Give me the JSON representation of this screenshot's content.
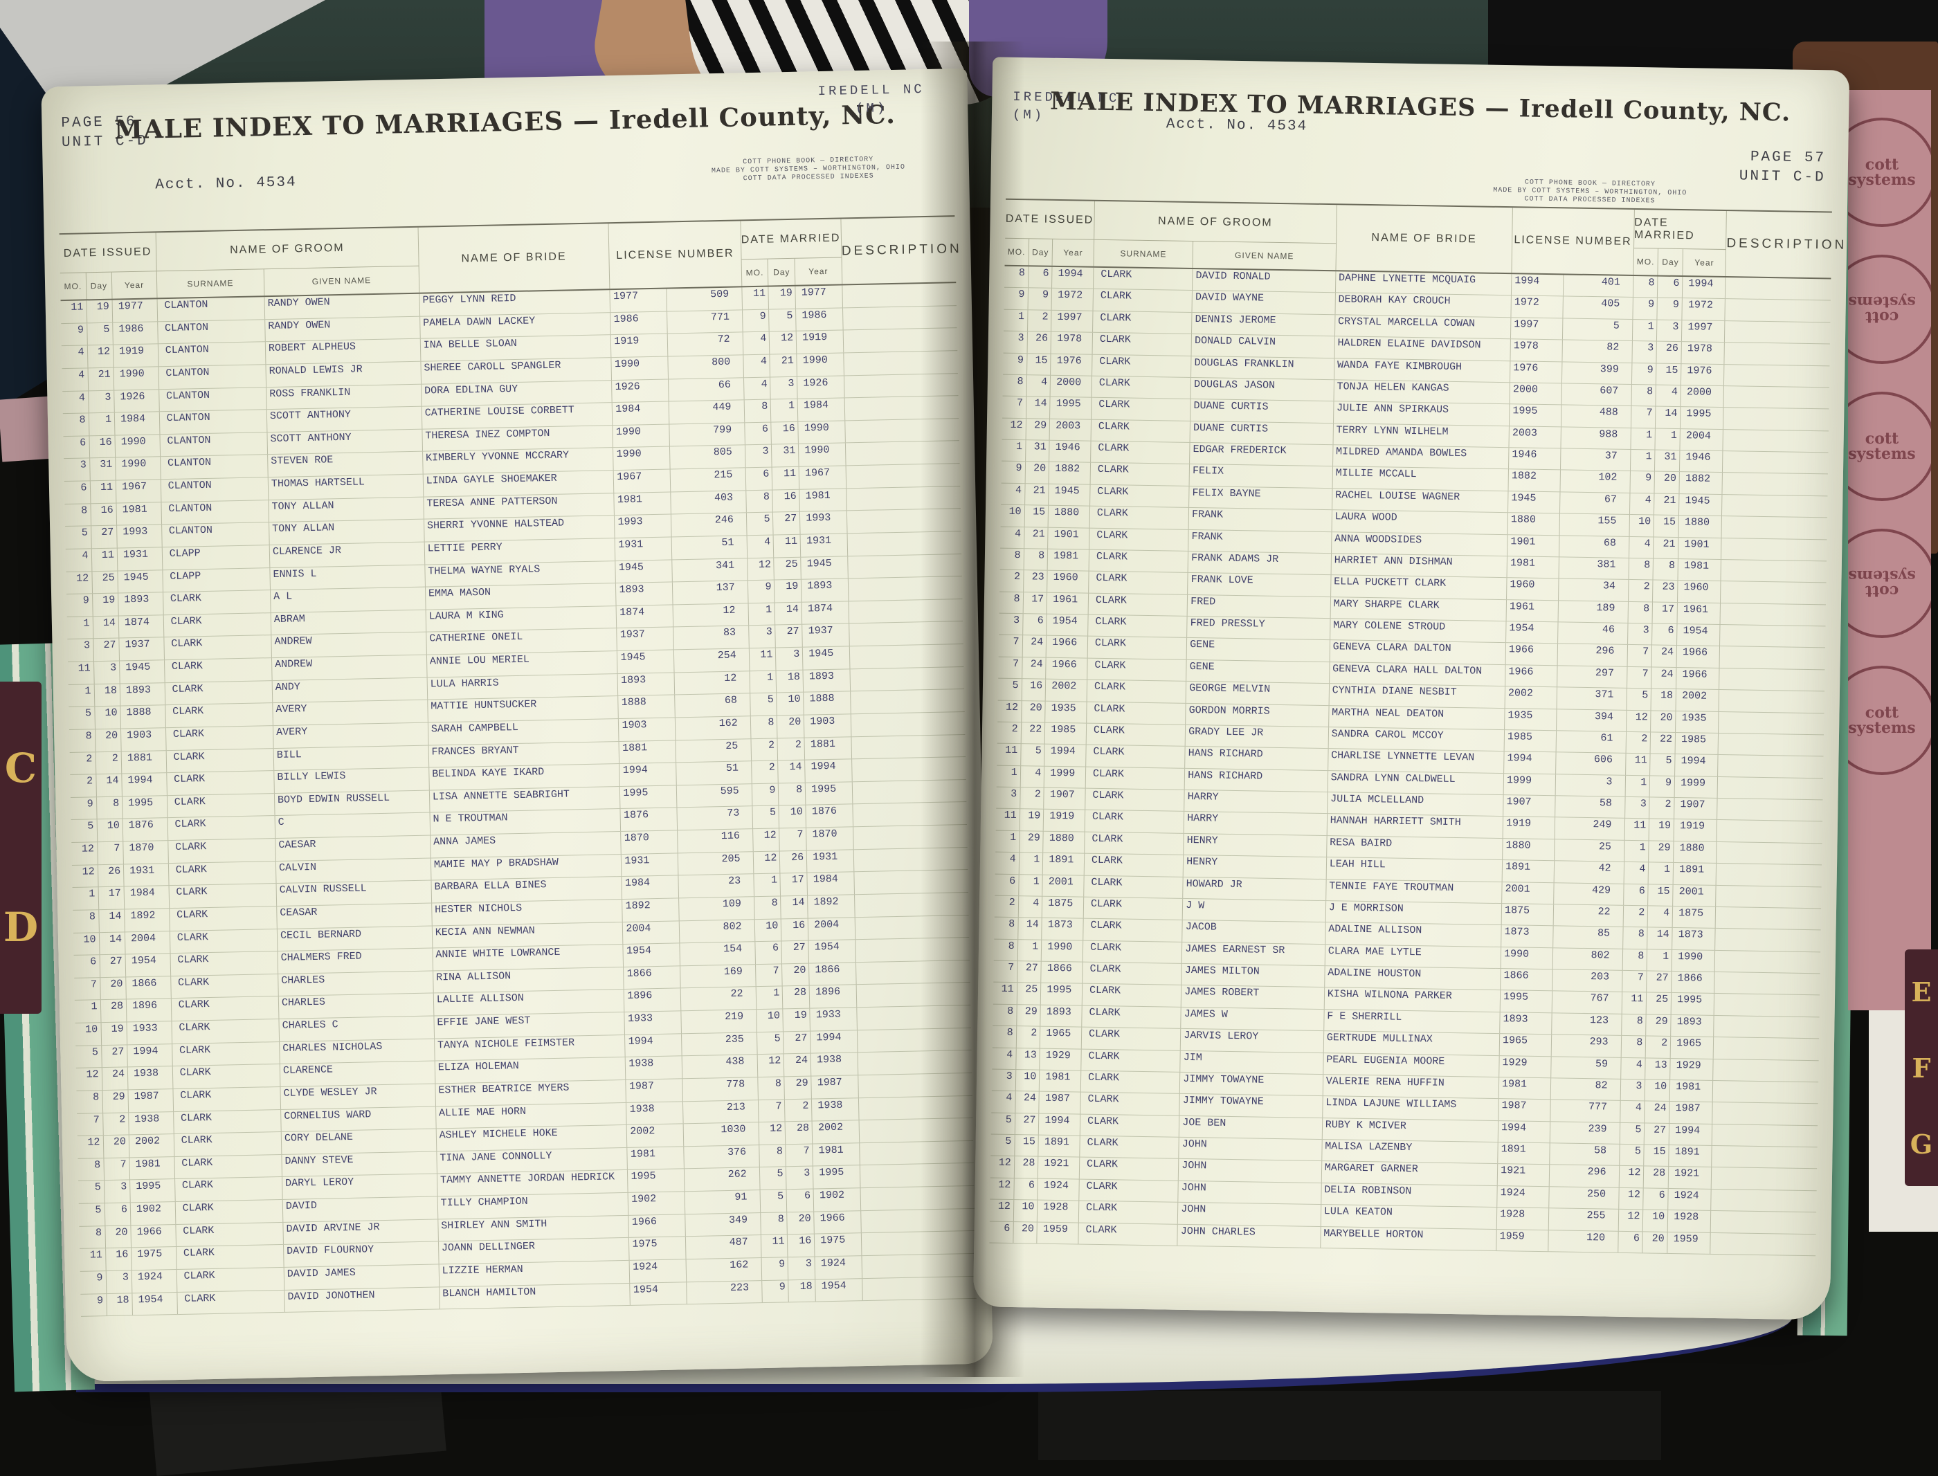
{
  "scene": {
    "left_tab_letters": [
      "C",
      "D"
    ],
    "right_tab_letters": [
      "E",
      "F",
      "G"
    ],
    "stamp_text": "cott systems",
    "accent_colors": {
      "page_edge_green": "#67ab8c",
      "tab_maroon": "#46232b",
      "tab_gold": "#d8b25a",
      "ink_blue": "#41416b",
      "stamp_pink": "#bd8b90"
    }
  },
  "headers": {
    "date_issued": "DATE ISSUED",
    "mo": "MO.",
    "day": "Day",
    "year": "Year",
    "groom": "NAME OF GROOM",
    "surname": "SURNAME",
    "given": "GIVEN NAME",
    "bride": "NAME OF BRIDE",
    "license": "LICENSE NUMBER",
    "married": "DATE MARRIED",
    "description": "DESCRIPTION"
  },
  "left_page": {
    "page_label": "PAGE 56",
    "unit_label": "UNIT C-D",
    "acct_label": "Acct. No. 4534",
    "corner_line1": "IREDELL NC",
    "corner_line2": "(M)",
    "title": "MALE INDEX TO MARRIAGES — Iredell County, NC.",
    "imprint_line1": "COTT PHONE BOOK — DIRECTORY",
    "imprint_line2": "MADE BY COTT SYSTEMS – WORTHINGTON, OHIO",
    "imprint_line3": "COTT DATA PROCESSED INDEXES",
    "rows": [
      [
        "11",
        "19",
        "1977",
        "CLANTON",
        "RANDY OWEN",
        "PEGGY LYNN REID",
        "1977",
        "509",
        "11",
        "19",
        "1977"
      ],
      [
        "9",
        "5",
        "1986",
        "CLANTON",
        "RANDY OWEN",
        "PAMELA DAWN LACKEY",
        "1986",
        "771",
        "9",
        "5",
        "1986"
      ],
      [
        "4",
        "12",
        "1919",
        "CLANTON",
        "ROBERT ALPHEUS",
        "INA BELLE SLOAN",
        "1919",
        "72",
        "4",
        "12",
        "1919"
      ],
      [
        "4",
        "21",
        "1990",
        "CLANTON",
        "RONALD LEWIS JR",
        "SHEREE CAROLL SPANGLER",
        "1990",
        "800",
        "4",
        "21",
        "1990"
      ],
      [
        "4",
        "3",
        "1926",
        "CLANTON",
        "ROSS FRANKLIN",
        "DORA EDLINA GUY",
        "1926",
        "66",
        "4",
        "3",
        "1926"
      ],
      [
        "8",
        "1",
        "1984",
        "CLANTON",
        "SCOTT ANTHONY",
        "CATHERINE LOUISE CORBETT",
        "1984",
        "449",
        "8",
        "1",
        "1984"
      ],
      [
        "6",
        "16",
        "1990",
        "CLANTON",
        "SCOTT ANTHONY",
        "THERESA INEZ COMPTON",
        "1990",
        "799",
        "6",
        "16",
        "1990"
      ],
      [
        "3",
        "31",
        "1990",
        "CLANTON",
        "STEVEN ROE",
        "KIMBERLY YVONNE MCCRARY",
        "1990",
        "805",
        "3",
        "31",
        "1990"
      ],
      [
        "6",
        "11",
        "1967",
        "CLANTON",
        "THOMAS HARTSELL",
        "LINDA GAYLE SHOEMAKER",
        "1967",
        "215",
        "6",
        "11",
        "1967"
      ],
      [
        "8",
        "16",
        "1981",
        "CLANTON",
        "TONY ALLAN",
        "TERESA ANNE PATTERSON",
        "1981",
        "403",
        "8",
        "16",
        "1981"
      ],
      [
        "5",
        "27",
        "1993",
        "CLANTON",
        "TONY ALLAN",
        "SHERRI YVONNE HALSTEAD",
        "1993",
        "246",
        "5",
        "27",
        "1993"
      ],
      [
        "4",
        "11",
        "1931",
        "CLAPP",
        "CLARENCE JR",
        "LETTIE PERRY",
        "1931",
        "51",
        "4",
        "11",
        "1931"
      ],
      [
        "12",
        "25",
        "1945",
        "CLAPP",
        "ENNIS L",
        "THELMA WAYNE RYALS",
        "1945",
        "341",
        "12",
        "25",
        "1945"
      ],
      [
        "9",
        "19",
        "1893",
        "CLARK",
        "A L",
        "EMMA MASON",
        "1893",
        "137",
        "9",
        "19",
        "1893"
      ],
      [
        "1",
        "14",
        "1874",
        "CLARK",
        "ABRAM",
        "LAURA M KING",
        "1874",
        "12",
        "1",
        "14",
        "1874"
      ],
      [
        "3",
        "27",
        "1937",
        "CLARK",
        "ANDREW",
        "CATHERINE ONEIL",
        "1937",
        "83",
        "3",
        "27",
        "1937"
      ],
      [
        "11",
        "3",
        "1945",
        "CLARK",
        "ANDREW",
        "ANNIE LOU MERIEL",
        "1945",
        "254",
        "11",
        "3",
        "1945"
      ],
      [
        "1",
        "18",
        "1893",
        "CLARK",
        "ANDY",
        "LULA HARRIS",
        "1893",
        "12",
        "1",
        "18",
        "1893"
      ],
      [
        "5",
        "10",
        "1888",
        "CLARK",
        "AVERY",
        "MATTIE HUNTSUCKER",
        "1888",
        "68",
        "5",
        "10",
        "1888"
      ],
      [
        "8",
        "20",
        "1903",
        "CLARK",
        "AVERY",
        "SARAH CAMPBELL",
        "1903",
        "162",
        "8",
        "20",
        "1903"
      ],
      [
        "2",
        "2",
        "1881",
        "CLARK",
        "BILL",
        "FRANCES BRYANT",
        "1881",
        "25",
        "2",
        "2",
        "1881"
      ],
      [
        "2",
        "14",
        "1994",
        "CLARK",
        "BILLY LEWIS",
        "BELINDA KAYE IKARD",
        "1994",
        "51",
        "2",
        "14",
        "1994"
      ],
      [
        "9",
        "8",
        "1995",
        "CLARK",
        "BOYD EDWIN RUSSELL",
        "LISA ANNETTE SEABRIGHT",
        "1995",
        "595",
        "9",
        "8",
        "1995"
      ],
      [
        "5",
        "10",
        "1876",
        "CLARK",
        "C",
        "N E TROUTMAN",
        "1876",
        "73",
        "5",
        "10",
        "1876"
      ],
      [
        "12",
        "7",
        "1870",
        "CLARK",
        "CAESAR",
        "ANNA JAMES",
        "1870",
        "116",
        "12",
        "7",
        "1870"
      ],
      [
        "12",
        "26",
        "1931",
        "CLARK",
        "CALVIN",
        "MAMIE MAY P BRADSHAW",
        "1931",
        "205",
        "12",
        "26",
        "1931"
      ],
      [
        "1",
        "17",
        "1984",
        "CLARK",
        "CALVIN RUSSELL",
        "BARBARA ELLA BINES",
        "1984",
        "23",
        "1",
        "17",
        "1984"
      ],
      [
        "8",
        "14",
        "1892",
        "CLARK",
        "CEASAR",
        "HESTER NICHOLS",
        "1892",
        "109",
        "8",
        "14",
        "1892"
      ],
      [
        "10",
        "14",
        "2004",
        "CLARK",
        "CECIL BERNARD",
        "KECIA ANN NEWMAN",
        "2004",
        "802",
        "10",
        "16",
        "2004"
      ],
      [
        "6",
        "27",
        "1954",
        "CLARK",
        "CHALMERS FRED",
        "ANNIE WHITE LOWRANCE",
        "1954",
        "154",
        "6",
        "27",
        "1954"
      ],
      [
        "7",
        "20",
        "1866",
        "CLARK",
        "CHARLES",
        "RINA ALLISON",
        "1866",
        "169",
        "7",
        "20",
        "1866"
      ],
      [
        "1",
        "28",
        "1896",
        "CLARK",
        "CHARLES",
        "LALLIE ALLISON",
        "1896",
        "22",
        "1",
        "28",
        "1896"
      ],
      [
        "10",
        "19",
        "1933",
        "CLARK",
        "CHARLES C",
        "EFFIE JANE WEST",
        "1933",
        "219",
        "10",
        "19",
        "1933"
      ],
      [
        "5",
        "27",
        "1994",
        "CLARK",
        "CHARLES NICHOLAS",
        "TANYA NICHOLE FEIMSTER",
        "1994",
        "235",
        "5",
        "27",
        "1994"
      ],
      [
        "12",
        "24",
        "1938",
        "CLARK",
        "CLARENCE",
        "ELIZA HOLEMAN",
        "1938",
        "438",
        "12",
        "24",
        "1938"
      ],
      [
        "8",
        "29",
        "1987",
        "CLARK",
        "CLYDE WESLEY JR",
        "ESTHER BEATRICE MYERS",
        "1987",
        "778",
        "8",
        "29",
        "1987"
      ],
      [
        "7",
        "2",
        "1938",
        "CLARK",
        "CORNELIUS WARD",
        "ALLIE MAE HORN",
        "1938",
        "213",
        "7",
        "2",
        "1938"
      ],
      [
        "12",
        "20",
        "2002",
        "CLARK",
        "CORY DELANE",
        "ASHLEY MICHELE HOKE",
        "2002",
        "1030",
        "12",
        "28",
        "2002"
      ],
      [
        "8",
        "7",
        "1981",
        "CLARK",
        "DANNY STEVE",
        "TINA JANE CONNOLLY",
        "1981",
        "376",
        "8",
        "7",
        "1981"
      ],
      [
        "5",
        "3",
        "1995",
        "CLARK",
        "DARYL LEROY",
        "TAMMY ANNETTE JORDAN HEDRICK",
        "1995",
        "262",
        "5",
        "3",
        "1995"
      ],
      [
        "5",
        "6",
        "1902",
        "CLARK",
        "DAVID",
        "TILLY CHAMPION",
        "1902",
        "91",
        "5",
        "6",
        "1902"
      ],
      [
        "8",
        "20",
        "1966",
        "CLARK",
        "DAVID ARVINE JR",
        "SHIRLEY ANN SMITH",
        "1966",
        "349",
        "8",
        "20",
        "1966"
      ],
      [
        "11",
        "16",
        "1975",
        "CLARK",
        "DAVID FLOURNOY",
        "JOANN DELLINGER",
        "1975",
        "487",
        "11",
        "16",
        "1975"
      ],
      [
        "9",
        "3",
        "1924",
        "CLARK",
        "DAVID JAMES",
        "LIZZIE HERMAN",
        "1924",
        "162",
        "9",
        "3",
        "1924"
      ],
      [
        "9",
        "18",
        "1954",
        "CLARK",
        "DAVID JONOTHEN",
        "BLANCH HAMILTON",
        "1954",
        "223",
        "9",
        "18",
        "1954"
      ]
    ]
  },
  "right_page": {
    "page_label": "PAGE 57",
    "unit_label": "UNIT C-D",
    "acct_label": "Acct. No. 4534",
    "corner_line1": "IREDELL NC",
    "corner_line2": "(M)",
    "title": "MALE INDEX TO MARRIAGES — Iredell County, NC.",
    "imprint_line1": "COTT PHONE BOOK — DIRECTORY",
    "imprint_line2": "MADE BY COTT SYSTEMS – WORTHINGTON, OHIO",
    "imprint_line3": "COTT DATA PROCESSED INDEXES",
    "rows": [
      [
        "8",
        "6",
        "1994",
        "CLARK",
        "DAVID RONALD",
        "DAPHNE LYNETTE MCQUAIG",
        "1994",
        "401",
        "8",
        "6",
        "1994"
      ],
      [
        "9",
        "9",
        "1972",
        "CLARK",
        "DAVID WAYNE",
        "DEBORAH KAY CROUCH",
        "1972",
        "405",
        "9",
        "9",
        "1972"
      ],
      [
        "1",
        "2",
        "1997",
        "CLARK",
        "DENNIS JEROME",
        "CRYSTAL MARCELLA COWAN",
        "1997",
        "5",
        "1",
        "3",
        "1997"
      ],
      [
        "3",
        "26",
        "1978",
        "CLARK",
        "DONALD CALVIN",
        "HALDREN ELAINE DAVIDSON",
        "1978",
        "82",
        "3",
        "26",
        "1978"
      ],
      [
        "9",
        "15",
        "1976",
        "CLARK",
        "DOUGLAS FRANKLIN",
        "WANDA FAYE KIMBROUGH",
        "1976",
        "399",
        "9",
        "15",
        "1976"
      ],
      [
        "8",
        "4",
        "2000",
        "CLARK",
        "DOUGLAS JASON",
        "TONJA HELEN KANGAS",
        "2000",
        "607",
        "8",
        "4",
        "2000"
      ],
      [
        "7",
        "14",
        "1995",
        "CLARK",
        "DUANE CURTIS",
        "JULIE ANN SPIRKAUS",
        "1995",
        "488",
        "7",
        "14",
        "1995"
      ],
      [
        "12",
        "29",
        "2003",
        "CLARK",
        "DUANE CURTIS",
        "TERRY LYNN WILHELM",
        "2003",
        "988",
        "1",
        "1",
        "2004"
      ],
      [
        "1",
        "31",
        "1946",
        "CLARK",
        "EDGAR FREDERICK",
        "MILDRED AMANDA BOWLES",
        "1946",
        "37",
        "1",
        "31",
        "1946"
      ],
      [
        "9",
        "20",
        "1882",
        "CLARK",
        "FELIX",
        "MILLIE MCCALL",
        "1882",
        "102",
        "9",
        "20",
        "1882"
      ],
      [
        "4",
        "21",
        "1945",
        "CLARK",
        "FELIX BAYNE",
        "RACHEL LOUISE WAGNER",
        "1945",
        "67",
        "4",
        "21",
        "1945"
      ],
      [
        "10",
        "15",
        "1880",
        "CLARK",
        "FRANK",
        "LAURA WOOD",
        "1880",
        "155",
        "10",
        "15",
        "1880"
      ],
      [
        "4",
        "21",
        "1901",
        "CLARK",
        "FRANK",
        "ANNA WOODSIDES",
        "1901",
        "68",
        "4",
        "21",
        "1901"
      ],
      [
        "8",
        "8",
        "1981",
        "CLARK",
        "FRANK ADAMS JR",
        "HARRIET ANN DISHMAN",
        "1981",
        "381",
        "8",
        "8",
        "1981"
      ],
      [
        "2",
        "23",
        "1960",
        "CLARK",
        "FRANK LOVE",
        "ELLA PUCKETT CLARK",
        "1960",
        "34",
        "2",
        "23",
        "1960"
      ],
      [
        "8",
        "17",
        "1961",
        "CLARK",
        "FRED",
        "MARY SHARPE CLARK",
        "1961",
        "189",
        "8",
        "17",
        "1961"
      ],
      [
        "3",
        "6",
        "1954",
        "CLARK",
        "FRED PRESSLY",
        "MARY COLENE STROUD",
        "1954",
        "46",
        "3",
        "6",
        "1954"
      ],
      [
        "7",
        "24",
        "1966",
        "CLARK",
        "GENE",
        "GENEVA CLARA DALTON",
        "1966",
        "296",
        "7",
        "24",
        "1966"
      ],
      [
        "7",
        "24",
        "1966",
        "CLARK",
        "GENE",
        "GENEVA CLARA HALL DALTON",
        "1966",
        "297",
        "7",
        "24",
        "1966"
      ],
      [
        "5",
        "16",
        "2002",
        "CLARK",
        "GEORGE MELVIN",
        "CYNTHIA DIANE NESBIT",
        "2002",
        "371",
        "5",
        "18",
        "2002"
      ],
      [
        "12",
        "20",
        "1935",
        "CLARK",
        "GORDON MORRIS",
        "MARTHA NEAL DEATON",
        "1935",
        "394",
        "12",
        "20",
        "1935"
      ],
      [
        "2",
        "22",
        "1985",
        "CLARK",
        "GRADY LEE JR",
        "SANDRA CAROL MCCOY",
        "1985",
        "61",
        "2",
        "22",
        "1985"
      ],
      [
        "11",
        "5",
        "1994",
        "CLARK",
        "HANS RICHARD",
        "CHARLISE LYNNETTE LEVAN",
        "1994",
        "606",
        "11",
        "5",
        "1994"
      ],
      [
        "1",
        "4",
        "1999",
        "CLARK",
        "HANS RICHARD",
        "SANDRA LYNN CALDWELL",
        "1999",
        "3",
        "1",
        "9",
        "1999"
      ],
      [
        "3",
        "2",
        "1907",
        "CLARK",
        "HARRY",
        "JULIA MCLELLAND",
        "1907",
        "58",
        "3",
        "2",
        "1907"
      ],
      [
        "11",
        "19",
        "1919",
        "CLARK",
        "HARRY",
        "HANNAH HARRIETT SMITH",
        "1919",
        "249",
        "11",
        "19",
        "1919"
      ],
      [
        "1",
        "29",
        "1880",
        "CLARK",
        "HENRY",
        "RESA BAIRD",
        "1880",
        "25",
        "1",
        "29",
        "1880"
      ],
      [
        "4",
        "1",
        "1891",
        "CLARK",
        "HENRY",
        "LEAH HILL",
        "1891",
        "42",
        "4",
        "1",
        "1891"
      ],
      [
        "6",
        "1",
        "2001",
        "CLARK",
        "HOWARD JR",
        "TENNIE FAYE TROUTMAN",
        "2001",
        "429",
        "6",
        "15",
        "2001"
      ],
      [
        "2",
        "4",
        "1875",
        "CLARK",
        "J W",
        "J E MORRISON",
        "1875",
        "22",
        "2",
        "4",
        "1875"
      ],
      [
        "8",
        "14",
        "1873",
        "CLARK",
        "JACOB",
        "ADALINE ALLISON",
        "1873",
        "85",
        "8",
        "14",
        "1873"
      ],
      [
        "8",
        "1",
        "1990",
        "CLARK",
        "JAMES EARNEST SR",
        "CLARA MAE LYTLE",
        "1990",
        "802",
        "8",
        "1",
        "1990"
      ],
      [
        "7",
        "27",
        "1866",
        "CLARK",
        "JAMES MILTON",
        "ADALINE HOUSTON",
        "1866",
        "203",
        "7",
        "27",
        "1866"
      ],
      [
        "11",
        "25",
        "1995",
        "CLARK",
        "JAMES ROBERT",
        "KISHA WILNONA PARKER",
        "1995",
        "767",
        "11",
        "25",
        "1995"
      ],
      [
        "8",
        "29",
        "1893",
        "CLARK",
        "JAMES W",
        "F E SHERRILL",
        "1893",
        "123",
        "8",
        "29",
        "1893"
      ],
      [
        "8",
        "2",
        "1965",
        "CLARK",
        "JARVIS LEROY",
        "GERTRUDE MULLINAX",
        "1965",
        "293",
        "8",
        "2",
        "1965"
      ],
      [
        "4",
        "13",
        "1929",
        "CLARK",
        "JIM",
        "PEARL EUGENIA MOORE",
        "1929",
        "59",
        "4",
        "13",
        "1929"
      ],
      [
        "3",
        "10",
        "1981",
        "CLARK",
        "JIMMY TOWAYNE",
        "VALERIE RENA HUFFIN",
        "1981",
        "82",
        "3",
        "10",
        "1981"
      ],
      [
        "4",
        "24",
        "1987",
        "CLARK",
        "JIMMY TOWAYNE",
        "LINDA LAJUNE WILLIAMS",
        "1987",
        "777",
        "4",
        "24",
        "1987"
      ],
      [
        "5",
        "27",
        "1994",
        "CLARK",
        "JOE BEN",
        "RUBY K MCIVER",
        "1994",
        "239",
        "5",
        "27",
        "1994"
      ],
      [
        "5",
        "15",
        "1891",
        "CLARK",
        "JOHN",
        "MALISA LAZENBY",
        "1891",
        "58",
        "5",
        "15",
        "1891"
      ],
      [
        "12",
        "28",
        "1921",
        "CLARK",
        "JOHN",
        "MARGARET GARNER",
        "1921",
        "296",
        "12",
        "28",
        "1921"
      ],
      [
        "12",
        "6",
        "1924",
        "CLARK",
        "JOHN",
        "DELIA ROBINSON",
        "1924",
        "250",
        "12",
        "6",
        "1924"
      ],
      [
        "12",
        "10",
        "1928",
        "CLARK",
        "JOHN",
        "LULA KEATON",
        "1928",
        "255",
        "12",
        "10",
        "1928"
      ],
      [
        "6",
        "20",
        "1959",
        "CLARK",
        "JOHN CHARLES",
        "MARYBELLE HORTON",
        "1959",
        "120",
        "6",
        "20",
        "1959"
      ]
    ]
  }
}
